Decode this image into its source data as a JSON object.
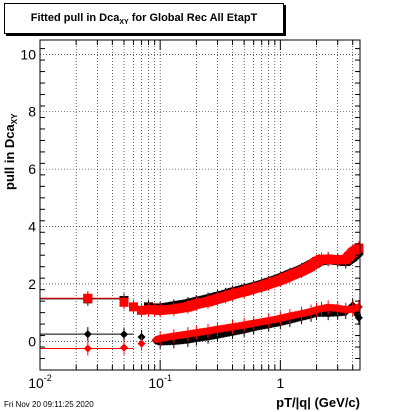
{
  "title": {
    "main": "Fitted pull in Dca",
    "sub": "XY",
    "rest": " for Global Rec All EtapT"
  },
  "ylabel": {
    "main": "pull in Dca",
    "sub": "XY"
  },
  "xlabel": "pT/|q| (GeV/c)",
  "datestamp": "Fri Nov 20 09:11:25 2020",
  "colors": {
    "black": "#000000",
    "red": "#ff0000"
  },
  "chart_data": {
    "type": "scatter",
    "x_scale": "log",
    "xlim": [
      0.01,
      4.6
    ],
    "ylim": [
      -1,
      10.5
    ],
    "grid": true,
    "y_ticks": [
      0,
      2,
      4,
      6,
      8,
      10
    ],
    "x_tick_labels": [
      {
        "value": 0.01,
        "base": "10",
        "exp": "-2"
      },
      {
        "value": 0.1,
        "base": "10",
        "exp": "-1"
      },
      {
        "value": 1,
        "base": "1",
        "exp": ""
      }
    ],
    "series": [
      {
        "color": "#000000",
        "marker": "square",
        "group": "upper",
        "x": [
          0.025,
          0.05,
          0.08,
          0.1,
          0.13,
          0.17,
          0.2,
          0.25,
          0.3,
          0.35,
          0.4,
          0.5,
          0.6,
          0.7,
          0.8,
          1.0,
          1.2,
          1.5,
          1.8,
          2.1,
          2.5,
          3.0,
          3.5,
          4.0,
          4.5
        ],
        "y": [
          1.48,
          1.42,
          1.2,
          1.14,
          1.22,
          1.3,
          1.37,
          1.46,
          1.55,
          1.62,
          1.7,
          1.8,
          1.88,
          1.96,
          2.04,
          2.18,
          2.32,
          2.48,
          2.65,
          2.8,
          2.86,
          2.82,
          2.78,
          2.95,
          3.15
        ]
      },
      {
        "color": "#ff0000",
        "marker": "square",
        "group": "upper",
        "x": [
          0.025,
          0.05,
          0.06,
          0.07,
          0.08,
          0.09,
          0.1,
          0.13,
          0.17,
          0.2,
          0.25,
          0.3,
          0.35,
          0.4,
          0.5,
          0.6,
          0.7,
          0.8,
          1.0,
          1.2,
          1.5,
          1.8,
          2.0,
          2.2,
          2.5,
          3.0,
          3.5,
          4.0,
          4.5
        ],
        "y": [
          1.5,
          1.36,
          1.2,
          1.08,
          1.1,
          1.1,
          1.08,
          1.12,
          1.2,
          1.3,
          1.38,
          1.48,
          1.56,
          1.64,
          1.74,
          1.84,
          1.92,
          2.0,
          2.14,
          2.28,
          2.45,
          2.62,
          2.78,
          2.85,
          2.86,
          2.84,
          2.85,
          3.1,
          3.25
        ]
      },
      {
        "color": "#000000",
        "marker": "diamond",
        "group": "lower",
        "x": [
          0.025,
          0.05,
          0.07,
          0.1,
          0.13,
          0.17,
          0.2,
          0.25,
          0.3,
          0.4,
          0.5,
          0.6,
          0.8,
          1.0,
          1.2,
          1.5,
          1.8,
          2.0,
          2.5,
          3.0,
          3.5,
          4.0,
          4.5
        ],
        "y": [
          0.25,
          0.24,
          0.15,
          -0.02,
          0.0,
          0.05,
          0.1,
          0.16,
          0.22,
          0.32,
          0.4,
          0.48,
          0.58,
          0.66,
          0.74,
          0.84,
          0.92,
          0.98,
          0.98,
          1.0,
          1.02,
          1.25,
          0.82
        ]
      },
      {
        "color": "#ff0000",
        "marker": "diamond",
        "group": "lower",
        "x": [
          0.025,
          0.05,
          0.07,
          0.1,
          0.13,
          0.17,
          0.2,
          0.25,
          0.3,
          0.4,
          0.5,
          0.6,
          0.8,
          1.0,
          1.2,
          1.5,
          1.8,
          2.0,
          2.2,
          2.5,
          3.0,
          3.5,
          4.0,
          4.5
        ],
        "y": [
          -0.25,
          -0.22,
          -0.08,
          0.1,
          0.18,
          0.25,
          0.3,
          0.36,
          0.42,
          0.5,
          0.57,
          0.63,
          0.72,
          0.8,
          0.88,
          0.96,
          1.04,
          1.1,
          1.14,
          1.18,
          1.15,
          1.1,
          1.12,
          1.2
        ]
      }
    ],
    "lines": [
      {
        "color": "#000000",
        "x": [
          0.01,
          0.05
        ],
        "y": [
          1.48,
          1.48
        ]
      },
      {
        "color": "#ff0000",
        "x": [
          0.01,
          0.05
        ],
        "y": [
          1.5,
          1.5
        ]
      },
      {
        "color": "#000000",
        "x": [
          0.01,
          0.06
        ],
        "y": [
          0.25,
          0.25
        ]
      },
      {
        "color": "#ff0000",
        "x": [
          0.01,
          0.06
        ],
        "y": [
          -0.25,
          -0.25
        ]
      }
    ]
  }
}
